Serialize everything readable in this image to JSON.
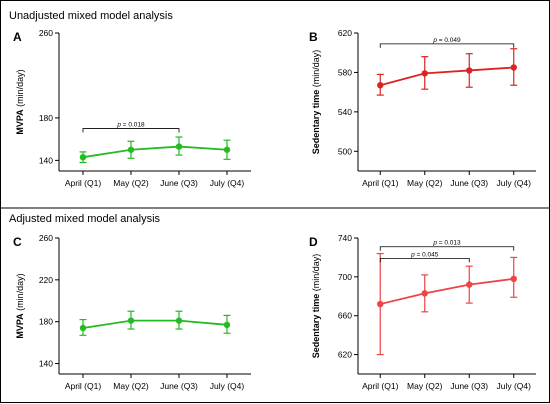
{
  "sections": [
    {
      "title": "Unadjusted mixed model analysis"
    },
    {
      "title": "Adjusted mixed model analysis"
    }
  ],
  "chart_data": [
    {
      "panel": "A",
      "type": "line",
      "section": "Unadjusted mixed model analysis",
      "color": "#22bb22",
      "ylabel_bold": "MVPA",
      "ylabel_rest": "(min/day)",
      "ylim": [
        130,
        260
      ],
      "yticks": [
        140,
        180,
        260
      ],
      "categories": [
        "April (Q1)",
        "May (Q2)",
        "June (Q3)",
        "July (Q4)"
      ],
      "values": [
        143,
        150,
        153,
        150
      ],
      "err_low": [
        138,
        142,
        145,
        141
      ],
      "err_high": [
        148,
        158,
        162,
        159
      ],
      "significance": [
        {
          "from": 0,
          "to": 2,
          "y": 170,
          "label": "p = 0.018"
        }
      ]
    },
    {
      "panel": "B",
      "type": "line",
      "section": "Unadjusted mixed model analysis",
      "color": "#dd2222",
      "ylabel_bold": "Sedentary time",
      "ylabel_rest": "(min/day)",
      "ylim": [
        480,
        620
      ],
      "yticks": [
        500,
        540,
        580,
        620
      ],
      "categories": [
        "April (Q1)",
        "May (Q2)",
        "June (Q3)",
        "July (Q4)"
      ],
      "values": [
        567,
        579,
        582,
        585
      ],
      "err_low": [
        557,
        563,
        565,
        567
      ],
      "err_high": [
        578,
        596,
        599,
        604
      ],
      "significance": [
        {
          "from": 0,
          "to": 3,
          "y": 609,
          "label": "p = 0.049"
        }
      ]
    },
    {
      "panel": "C",
      "type": "line",
      "section": "Adjusted mixed model analysis",
      "color": "#22bb22",
      "ylabel_bold": "MVPA",
      "ylabel_rest": "(min/day)",
      "ylim": [
        130,
        260
      ],
      "yticks": [
        140,
        180,
        220,
        260
      ],
      "categories": [
        "April (Q1)",
        "May (Q2)",
        "June (Q3)",
        "July (Q4)"
      ],
      "values": [
        174,
        181,
        181,
        177
      ],
      "err_low": [
        167,
        173,
        173,
        169
      ],
      "err_high": [
        182,
        190,
        190,
        186
      ],
      "significance": []
    },
    {
      "panel": "D",
      "type": "line",
      "section": "Adjusted mixed model analysis",
      "color": "#ee4444",
      "ylabel_bold": "Sedentary time",
      "ylabel_rest": "(min/day)",
      "ylim": [
        600,
        740
      ],
      "yticks": [
        620,
        660,
        700,
        740
      ],
      "categories": [
        "April (Q1)",
        "May (Q2)",
        "June (Q3)",
        "July (Q4)"
      ],
      "values": [
        672,
        683,
        692,
        698
      ],
      "err_low": [
        620,
        664,
        673,
        679
      ],
      "err_high": [
        724,
        702,
        711,
        720
      ],
      "significance": [
        {
          "from": 0,
          "to": 2,
          "y": 719,
          "label": "p = 0.045"
        },
        {
          "from": 0,
          "to": 3,
          "y": 731,
          "label": "p = 0.013"
        }
      ]
    }
  ]
}
